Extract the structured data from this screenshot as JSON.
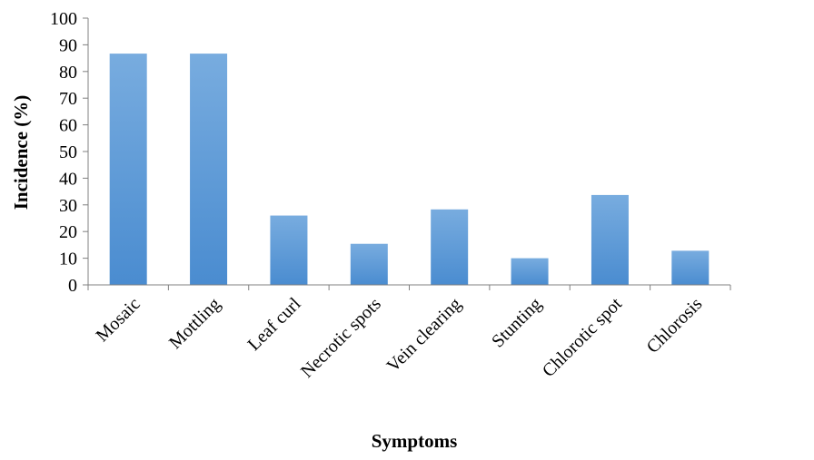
{
  "chart_data": {
    "type": "bar",
    "categories": [
      "Mosaic",
      "Mottling",
      "Leaf curl",
      "Necrotic spots",
      "Vein clearing",
      "Stunting",
      "Chlorotic spot",
      "Chlorosis"
    ],
    "values": [
      86.7,
      86.7,
      26,
      15.4,
      28.3,
      10,
      33.7,
      12.8
    ],
    "title": "",
    "xlabel": "Symptoms",
    "ylabel": "Incidence (%)",
    "ylim": [
      0,
      100
    ],
    "yticks": [
      0,
      10,
      20,
      30,
      40,
      50,
      60,
      70,
      80,
      90,
      100
    ],
    "grid": false,
    "legend": "none",
    "bar_color_top": "#78acdf",
    "bar_color_bottom": "#4a8cd0",
    "axis_color": "#808080"
  }
}
